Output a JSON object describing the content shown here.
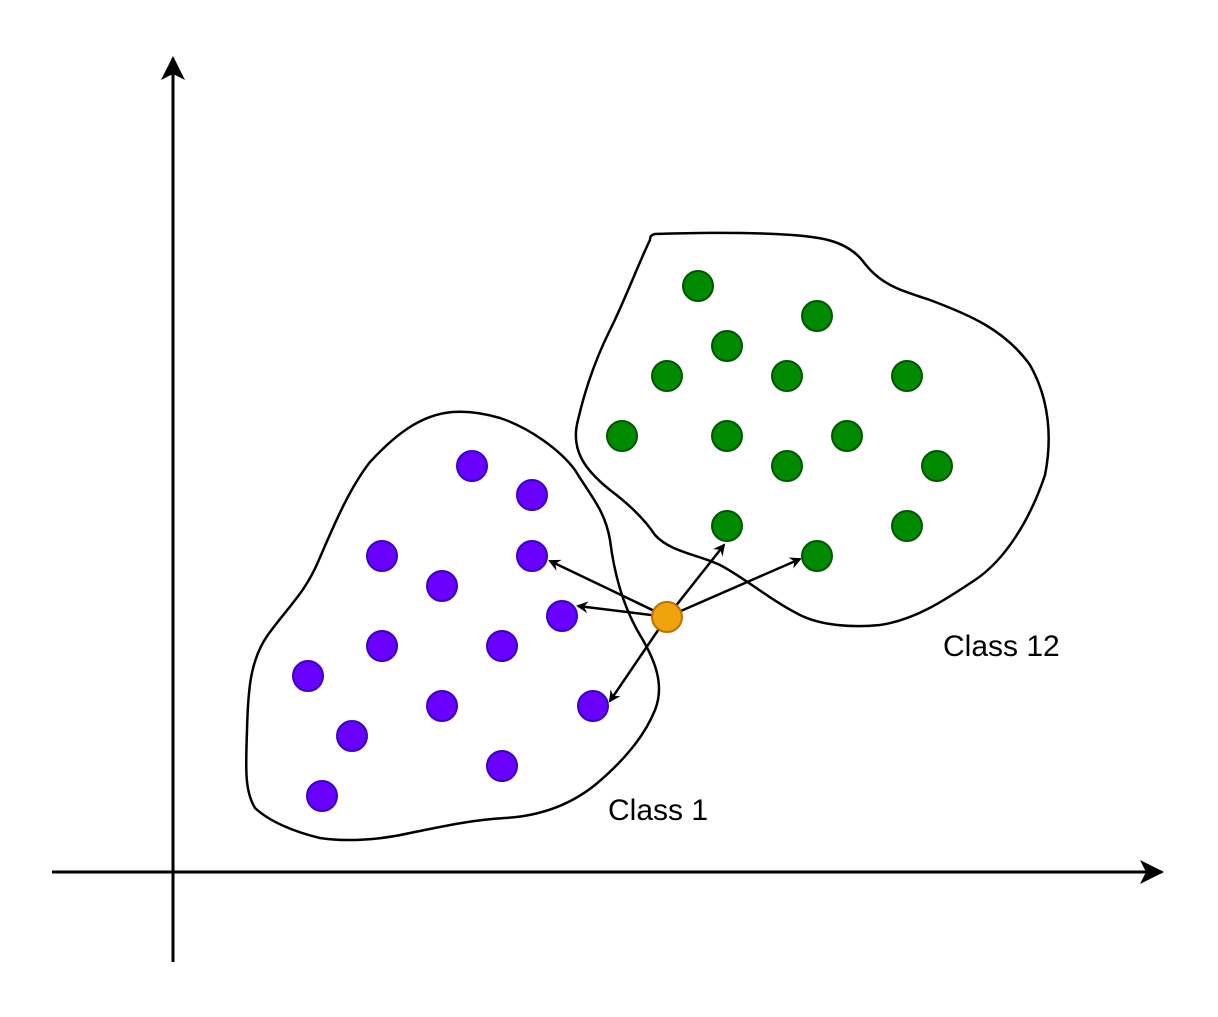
{
  "colors": {
    "class_1": "#6a00ff",
    "class_1_stroke": "#3700cc",
    "class_12": "#008a00",
    "class_12_stroke": "#005700",
    "query": "#f0a30a",
    "query_stroke": "#bd7000",
    "line": "#000000"
  },
  "labels": {
    "class_1": "Class 1",
    "class_12": "Class 12"
  }
}
